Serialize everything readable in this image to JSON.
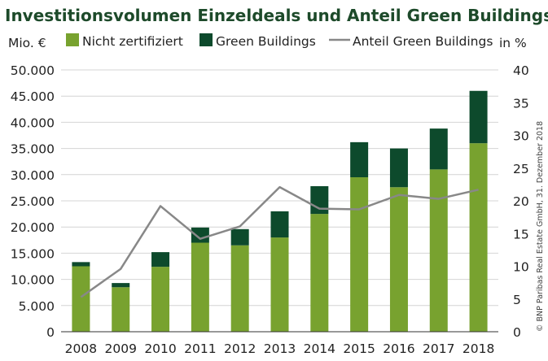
{
  "chart_data": {
    "type": "bar",
    "title": "Investitionsvolumen Einzeldeals und Anteil Green Buildings",
    "ylabel_left": "Mio. €",
    "ylabel_right": "in %",
    "categories": [
      "2008",
      "2009",
      "2010",
      "2011",
      "2012",
      "2013",
      "2014",
      "2015",
      "2016",
      "2017",
      "2018"
    ],
    "series": [
      {
        "name": "Nicht zertifiziert",
        "kind": "bar",
        "stack": "a",
        "color": "#78a22f",
        "values": [
          12500,
          8500,
          12400,
          17000,
          16500,
          18000,
          22500,
          29500,
          27600,
          31000,
          36000
        ]
      },
      {
        "name": "Green Buildings",
        "kind": "bar",
        "stack": "a",
        "color": "#0d4a2c",
        "values": [
          800,
          800,
          2800,
          2900,
          3100,
          5000,
          5300,
          6700,
          7400,
          7800,
          10000
        ]
      },
      {
        "name": "Anteil Green Buildings",
        "kind": "line",
        "axis": "right",
        "color": "#888888",
        "values": [
          5.3,
          9.6,
          19.2,
          14.2,
          16.1,
          22.1,
          18.8,
          18.7,
          20.9,
          20.3,
          21.7
        ]
      }
    ],
    "ylim_left": [
      0,
      50000
    ],
    "ylim_right": [
      0,
      40
    ],
    "yticks_left": [
      "0",
      "5.000",
      "10.000",
      "15.000",
      "20.000",
      "25.000",
      "30.000",
      "35.000",
      "40.000",
      "45.000",
      "50.000"
    ],
    "yticks_right": [
      "0",
      "5",
      "10",
      "15",
      "20",
      "25",
      "30",
      "35",
      "40"
    ],
    "grid": true,
    "legend_position": "top"
  },
  "credit": "© BNP Paribas Real Estate GmbH, 31. Dezember 2018"
}
